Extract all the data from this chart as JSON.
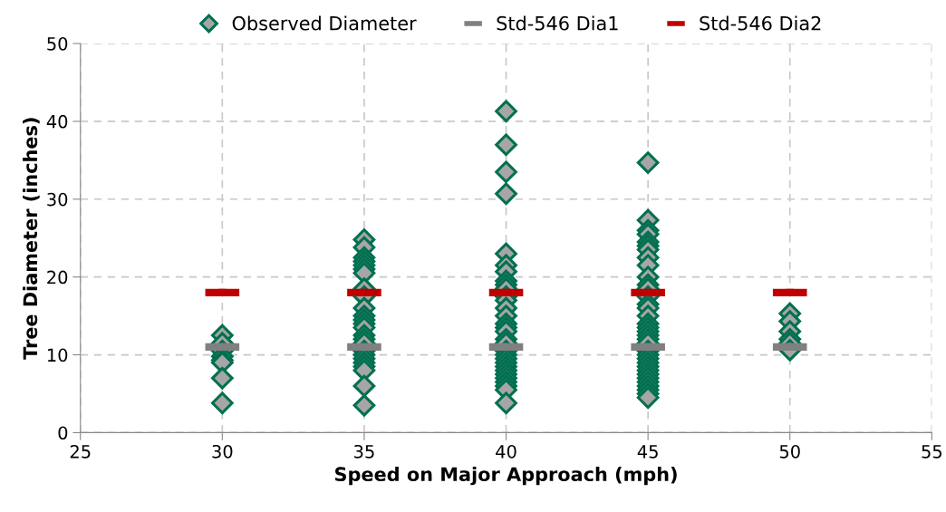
{
  "chart_data": {
    "type": "scatter",
    "xlabel": "Speed on Major Approach (mph)",
    "ylabel": "Tree Diameter (inches)",
    "xlim": [
      25,
      55
    ],
    "xticks": [
      25,
      30,
      35,
      40,
      45,
      50,
      55
    ],
    "ylim": [
      0,
      50
    ],
    "yticks": [
      0,
      10,
      20,
      30,
      40,
      50
    ],
    "grid": true,
    "legend": "top",
    "series": [
      {
        "name": "Observed Diameter",
        "color": "#007050",
        "marker": "diamond",
        "x": [
          30,
          30,
          30,
          30,
          30,
          30,
          30,
          30,
          35,
          35,
          35,
          35,
          35,
          35,
          35,
          35,
          35,
          35,
          35,
          35,
          35,
          35,
          35,
          35,
          35,
          35,
          35,
          35,
          35,
          35,
          35,
          35,
          35,
          40,
          40,
          40,
          40,
          40,
          40,
          40,
          40,
          40,
          40,
          40,
          40,
          40,
          40,
          40,
          40,
          40,
          40,
          40,
          40,
          40,
          40,
          40,
          40,
          40,
          40,
          40,
          40,
          40,
          40,
          40,
          45,
          45,
          45,
          45,
          45,
          45,
          45,
          45,
          45,
          45,
          45,
          45,
          45,
          45,
          45,
          45,
          45,
          45,
          45,
          45,
          45,
          45,
          45,
          45,
          45,
          45,
          45,
          45,
          45,
          45,
          45,
          45,
          45,
          45,
          45,
          50,
          50,
          50,
          50,
          50,
          50
        ],
        "values": [
          12.5,
          11.5,
          10.5,
          9.8,
          9.3,
          9.0,
          7.0,
          3.8,
          24.8,
          23.8,
          22.5,
          22,
          21.5,
          21,
          20.5,
          18.5,
          17.5,
          16,
          15,
          14.5,
          14,
          13.5,
          12.5,
          12,
          11.5,
          10.5,
          10,
          9.5,
          9,
          8.5,
          8,
          6,
          3.5,
          41.3,
          37,
          33.5,
          30.7,
          23,
          21.5,
          20.7,
          19.5,
          19,
          18.5,
          17.5,
          17,
          16,
          15,
          14,
          13.5,
          13,
          12,
          11.5,
          10.5,
          10,
          9.5,
          9,
          8.5,
          8,
          7.5,
          7,
          6.5,
          6,
          5.5,
          3.8,
          34.7,
          27.3,
          26,
          25.5,
          24.5,
          24,
          23.5,
          22.5,
          21.5,
          20,
          19,
          18.5,
          17.5,
          16.5,
          16,
          15,
          14,
          13.5,
          13,
          12.5,
          12,
          11.5,
          10.5,
          10,
          9.5,
          9,
          8.5,
          8,
          7.5,
          7,
          6.5,
          6,
          5.5,
          5,
          4.5,
          15.3,
          14.3,
          13,
          12,
          11.5,
          10.6
        ]
      },
      {
        "name": "Std-546 Dia1",
        "color": "#808080",
        "x": [
          30,
          35,
          40,
          45,
          50
        ],
        "values": [
          11,
          11,
          11,
          11,
          11
        ],
        "xerrors": [
          0.6,
          0.6,
          0.6,
          0.6,
          0.6
        ]
      },
      {
        "name": "Std-546 Dia2",
        "color": "#c00000",
        "x": [
          30,
          35,
          40,
          45,
          50
        ],
        "values": [
          18,
          18,
          18,
          18,
          18
        ],
        "xerrors": [
          0.6,
          0.6,
          0.6,
          0.6,
          0.6
        ]
      }
    ]
  }
}
